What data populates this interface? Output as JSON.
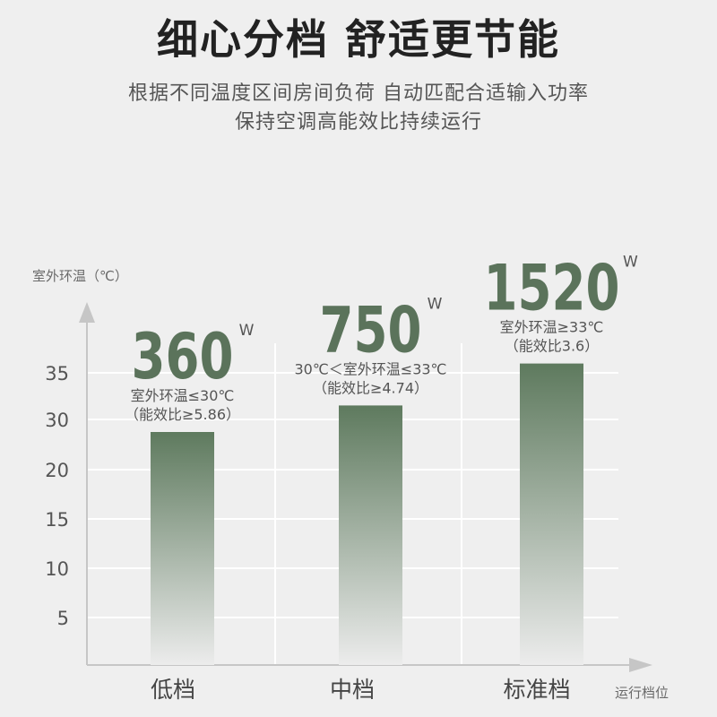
{
  "header": {
    "title": "细心分档 舒适更节能",
    "subtitle_line1": "根据不同温度区间房间负荷 自动匹配合适输入功率",
    "subtitle_line2": "保持空调高能效比持续运行"
  },
  "colors": {
    "bar_top": "#5e7a5e",
    "bar_bottom": "#ececec",
    "big_number": "#5b735b",
    "grid": "#ffffff",
    "axis": "#c8c8c8",
    "text": "#444444"
  },
  "chart_data": {
    "type": "bar",
    "ylabel": "室外环温（℃）",
    "xlabel": "运行档位",
    "yticks": [
      5,
      10,
      15,
      20,
      30,
      35
    ],
    "categories": [
      "低档",
      "中档",
      "标准档"
    ],
    "values": [
      27.5,
      31.5,
      36
    ],
    "annotations": [
      {
        "power": "360",
        "unit": "W",
        "condition": "室外环温≤30℃",
        "ratio": "（能效比≥5.86）"
      },
      {
        "power": "750",
        "unit": "W",
        "condition": "30℃＜室外环温≤33℃",
        "ratio": "（能效比≥4.74）"
      },
      {
        "power": "1520",
        "unit": "W",
        "condition": "室外环温≥33℃",
        "ratio": "（能效比3.6）"
      }
    ]
  }
}
